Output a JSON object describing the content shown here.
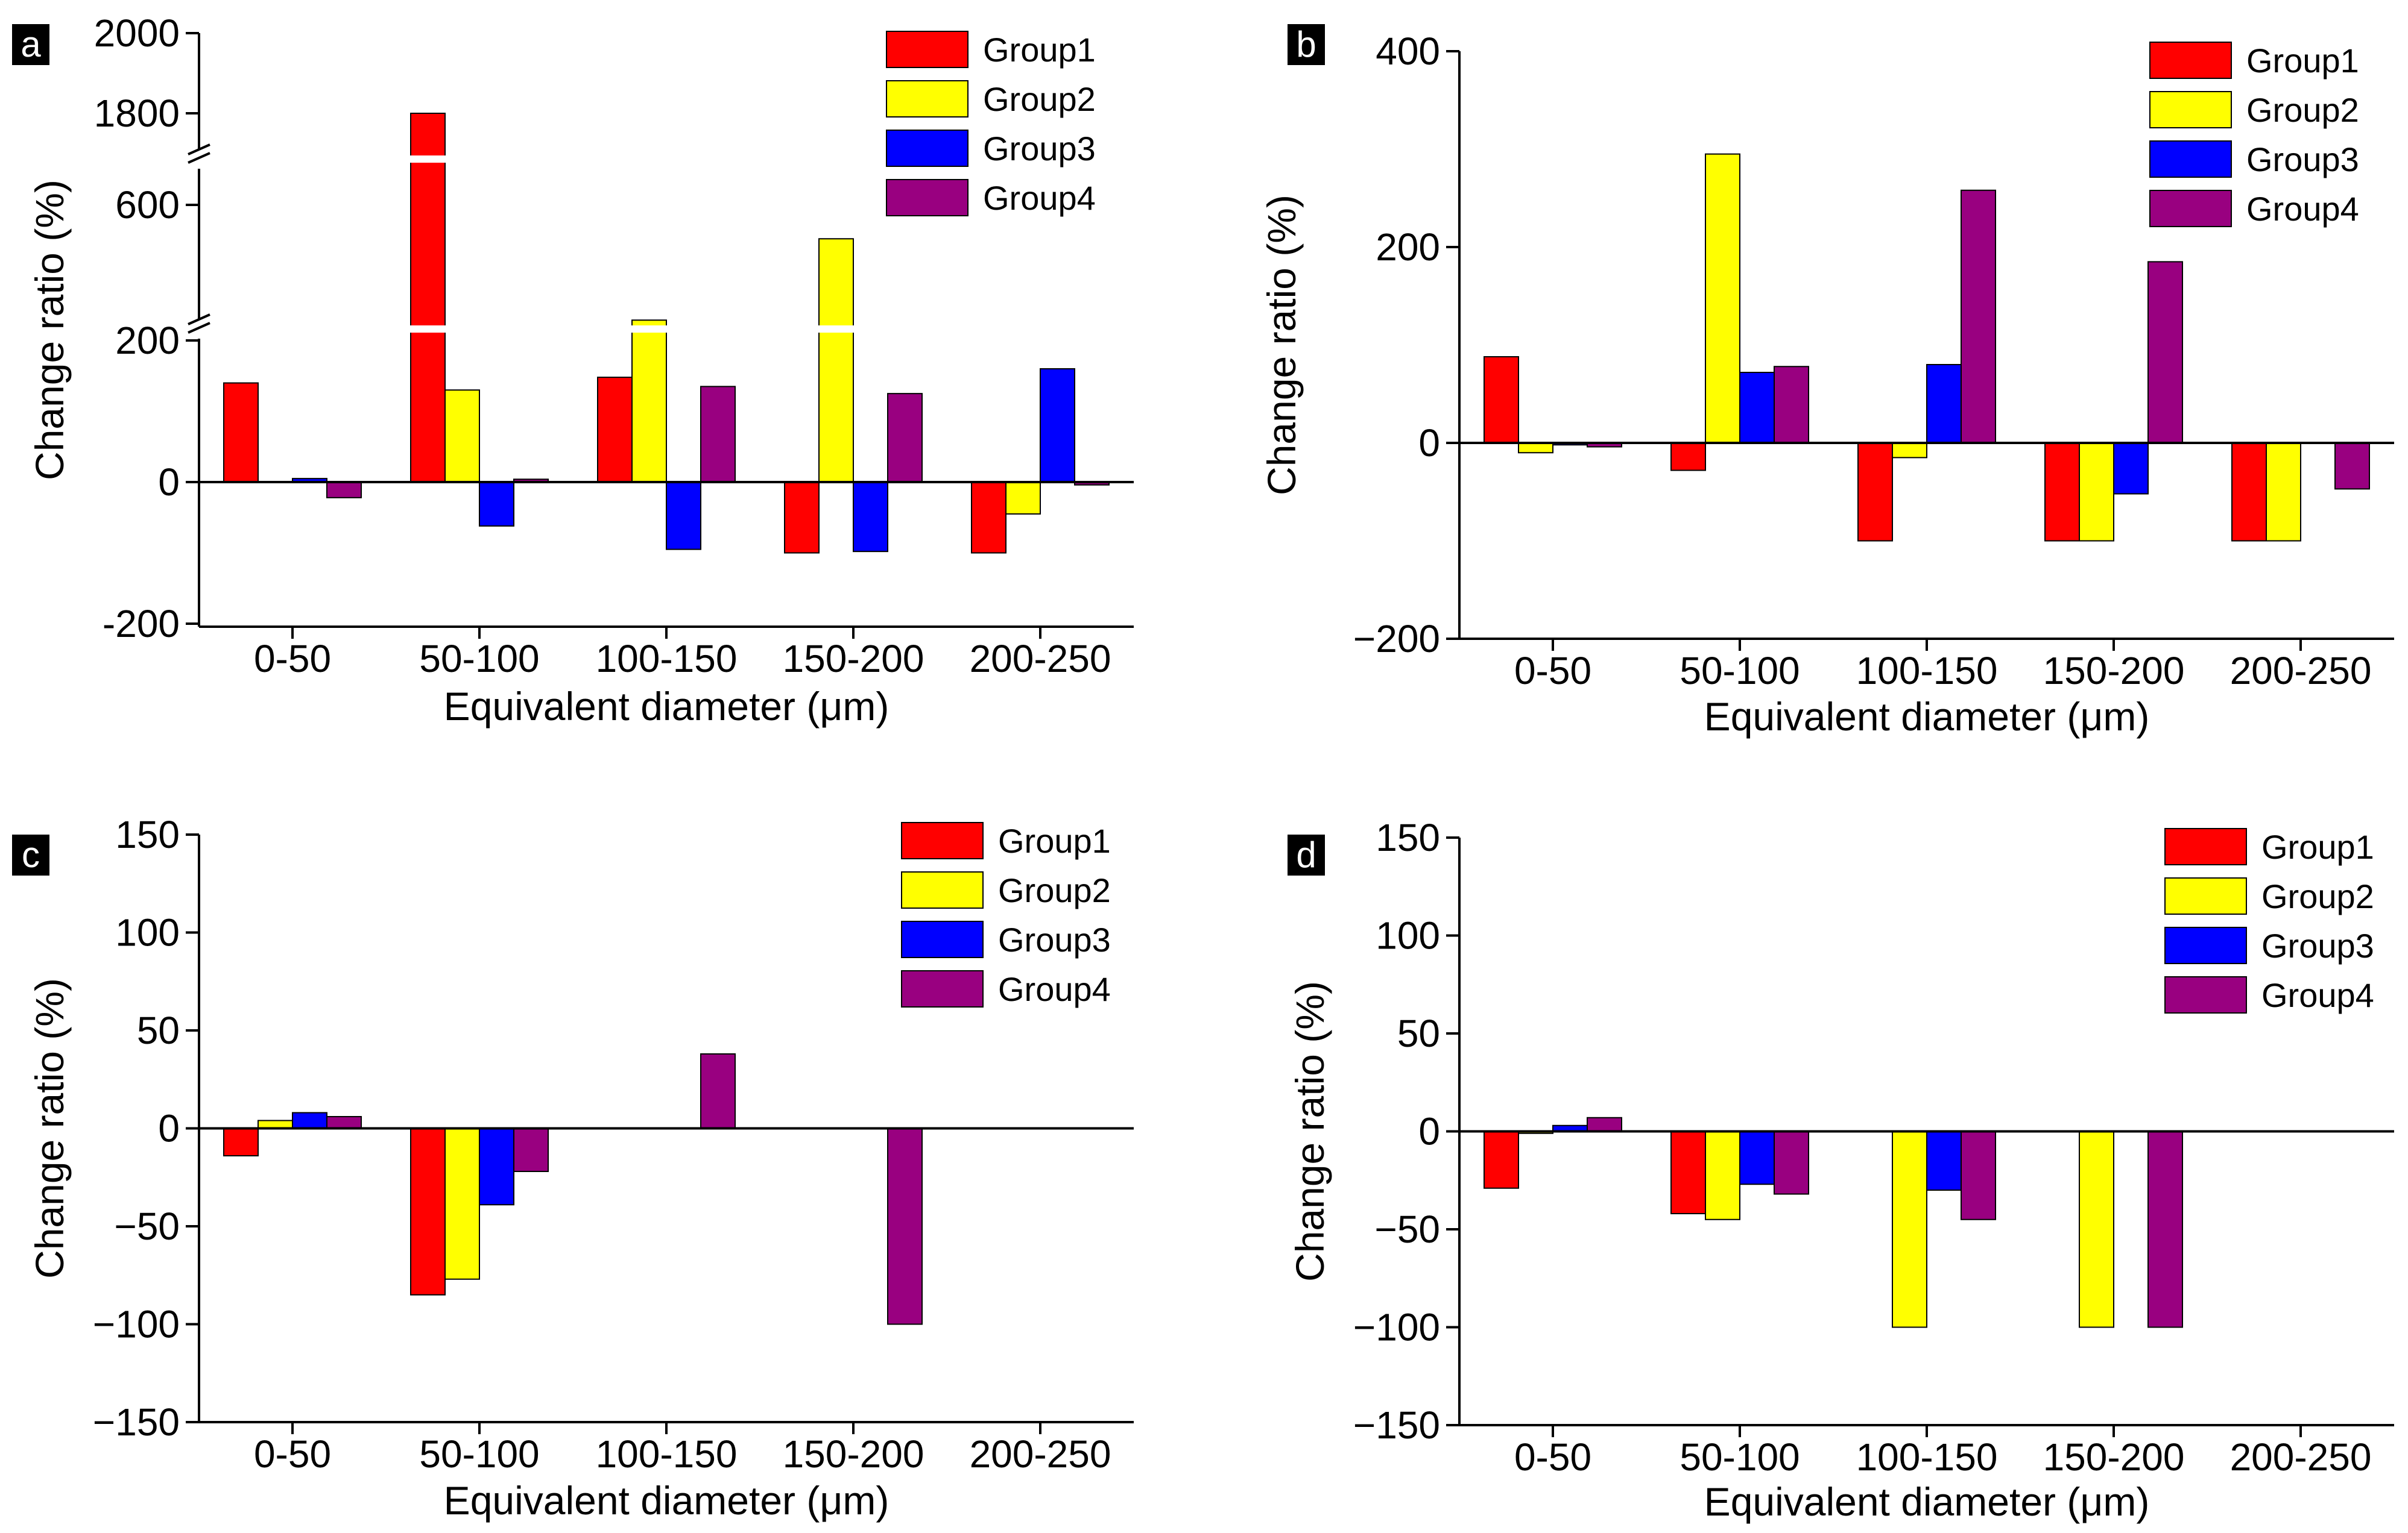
{
  "colors": {
    "Group1": "#ff0000",
    "Group2": "#ffff00",
    "Group3": "#0000ff",
    "Group4": "#990080"
  },
  "chart_data": [
    {
      "panel": "a",
      "type": "bar",
      "xlabel": "Equivalent diameter (μm)",
      "ylabel": "Change ratio (%)",
      "categories": [
        "0-50",
        "50-100",
        "100-150",
        "150-200",
        "200-250"
      ],
      "yticks": [
        "-200",
        "0",
        "200",
        "600",
        "1800",
        "2000"
      ],
      "broken_axis": true,
      "axis_segments": [
        [
          -200,
          200
        ],
        [
          200,
          600
        ],
        [
          1800,
          2000
        ]
      ],
      "series": [
        {
          "name": "Group1",
          "values": [
            140,
            1800,
            148,
            -100,
            -100
          ]
        },
        {
          "name": "Group2",
          "values": [
            0,
            130,
            260,
            500,
            -45
          ]
        },
        {
          "name": "Group3",
          "values": [
            5,
            -62,
            -95,
            -98,
            160
          ]
        },
        {
          "name": "Group4",
          "values": [
            -22,
            4,
            135,
            125,
            -4
          ]
        }
      ],
      "legend": [
        "Group1",
        "Group2",
        "Group3",
        "Group4"
      ]
    },
    {
      "panel": "b",
      "type": "bar",
      "xlabel": "Equivalent diameter (μm)",
      "ylabel": "Change ratio (%)",
      "categories": [
        "0-50",
        "50-100",
        "100-150",
        "150-200",
        "200-250"
      ],
      "yticks": [
        "−200",
        "0",
        "200",
        "400"
      ],
      "ylim": [
        -200,
        400
      ],
      "series": [
        {
          "name": "Group1",
          "values": [
            88,
            -28,
            -100,
            -100,
            -100
          ]
        },
        {
          "name": "Group2",
          "values": [
            -10,
            295,
            -15,
            -100,
            -100
          ]
        },
        {
          "name": "Group3",
          "values": [
            -2,
            72,
            80,
            -52,
            0
          ]
        },
        {
          "name": "Group4",
          "values": [
            -4,
            78,
            258,
            185,
            -47
          ]
        }
      ],
      "legend": [
        "Group1",
        "Group2",
        "Group3",
        "Group4"
      ]
    },
    {
      "panel": "c",
      "type": "bar",
      "xlabel": "Equivalent diameter (μm)",
      "ylabel": "Change ratio (%)",
      "categories": [
        "0-50",
        "50-100",
        "100-150",
        "150-200",
        "200-250"
      ],
      "yticks": [
        "−150",
        "−100",
        "−50",
        "0",
        "50",
        "100",
        "150"
      ],
      "ylim": [
        -150,
        150
      ],
      "series": [
        {
          "name": "Group1",
          "values": [
            -14,
            -85,
            0,
            0,
            0
          ]
        },
        {
          "name": "Group2",
          "values": [
            4,
            -77,
            0,
            0,
            0
          ]
        },
        {
          "name": "Group3",
          "values": [
            8,
            -39,
            0,
            0,
            0
          ]
        },
        {
          "name": "Group4",
          "values": [
            6,
            -22,
            38,
            -100,
            0
          ]
        }
      ],
      "legend": [
        "Group1",
        "Group2",
        "Group3",
        "Group4"
      ]
    },
    {
      "panel": "d",
      "type": "bar",
      "xlabel": "Equivalent diameter (μm)",
      "ylabel": "Change ratio (%)",
      "categories": [
        "0-50",
        "50-100",
        "100-150",
        "150-200",
        "200-250"
      ],
      "yticks": [
        "−150",
        "−100",
        "−50",
        "0",
        "50",
        "100",
        "150"
      ],
      "ylim": [
        -150,
        150
      ],
      "series": [
        {
          "name": "Group1",
          "values": [
            -29,
            -42,
            0,
            0,
            0
          ]
        },
        {
          "name": "Group2",
          "values": [
            -1,
            -45,
            -100,
            -100,
            0
          ]
        },
        {
          "name": "Group3",
          "values": [
            3,
            -27,
            -30,
            0,
            0
          ]
        },
        {
          "name": "Group4",
          "values": [
            7,
            -32,
            -45,
            -100,
            0
          ]
        }
      ],
      "legend": [
        "Group1",
        "Group2",
        "Group3",
        "Group4"
      ]
    }
  ]
}
